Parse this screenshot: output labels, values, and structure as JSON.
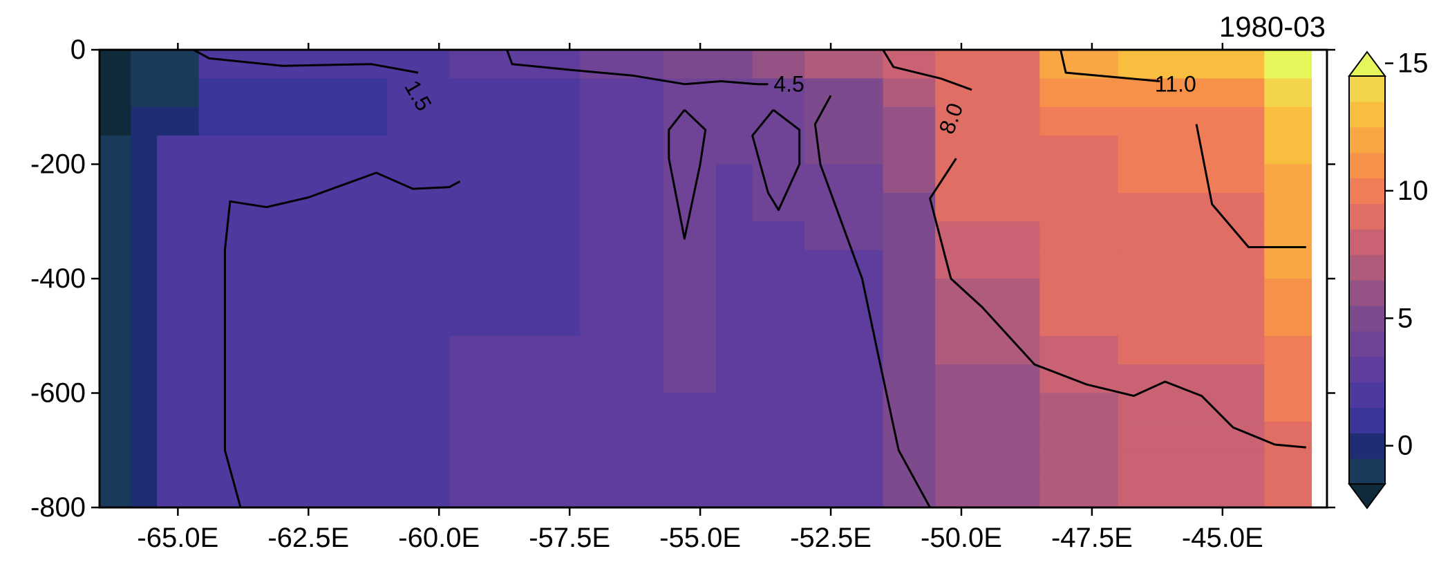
{
  "chart_data": {
    "type": "heatmap",
    "subtype": "filled-contour-section",
    "date_label": "1980-03",
    "xlabel": "",
    "ylabel": "",
    "xlim": [
      -66.5,
      -43.0
    ],
    "ylim": [
      -800,
      0
    ],
    "xticks": [
      {
        "value": -65.0,
        "label": "-65.0E"
      },
      {
        "value": -62.5,
        "label": "-62.5E"
      },
      {
        "value": -60.0,
        "label": "-60.0E"
      },
      {
        "value": -57.5,
        "label": "-57.5E"
      },
      {
        "value": -55.0,
        "label": "-55.0E"
      },
      {
        "value": -52.5,
        "label": "-52.5E"
      },
      {
        "value": -50.0,
        "label": "-50.0E"
      },
      {
        "value": -47.5,
        "label": "-47.5E"
      },
      {
        "value": -45.0,
        "label": "-45.0E"
      }
    ],
    "yticks": [
      {
        "value": 0,
        "label": "0"
      },
      {
        "value": -200,
        "label": "-200"
      },
      {
        "value": -400,
        "label": "-400"
      },
      {
        "value": -600,
        "label": "-600"
      },
      {
        "value": -800,
        "label": "-800"
      }
    ],
    "colorbar": {
      "levels": [
        -1.5,
        -0.5,
        0.5,
        1.5,
        2.5,
        3.5,
        4.5,
        5.5,
        6.5,
        7.5,
        8.5,
        9.5,
        10.5,
        11.5,
        12.5,
        13.5,
        14.5
      ],
      "colors": [
        "#1a3a5c",
        "#1f2e74",
        "#3a3599",
        "#4e3a9e",
        "#5e3d9c",
        "#6f4496",
        "#7d4a8e",
        "#955284",
        "#b05a7c",
        "#c96373",
        "#e06e64",
        "#ef7e58",
        "#f7914a",
        "#f9a744",
        "#f9bd40",
        "#f2d54a"
      ],
      "under_color": "#0e2a3b",
      "over_color": "#e6f55a",
      "ticks": [
        {
          "value": 0,
          "label": "0"
        },
        {
          "value": 5,
          "label": "5"
        },
        {
          "value": 10,
          "label": "10"
        },
        {
          "value": 15,
          "label": "15"
        }
      ],
      "extend": "both"
    },
    "depths": [
      0,
      -50,
      -100,
      -150,
      -200,
      -250,
      -300,
      -350,
      -400,
      -450,
      -500,
      -550,
      -600,
      -650,
      -700,
      -750,
      -800
    ],
    "columns": [
      {
        "x0": -66.5,
        "x1": -65.9,
        "values": [
          -2,
          -2,
          -2,
          -1.5,
          -1.5,
          -1.5,
          -1.5,
          -1.5,
          -1.5,
          -1.5,
          -1.5,
          -1.5,
          -1.5,
          -1.5,
          -1.5,
          -1.5
        ]
      },
      {
        "x0": -65.9,
        "x1": -65.4,
        "values": [
          -1,
          -1,
          -0.3,
          -0.3,
          -0.3,
          -0.3,
          -0.3,
          -0.3,
          -0.3,
          -0.3,
          -0.3,
          -0.3,
          -0.3,
          -0.3,
          -0.3,
          -0.3
        ]
      },
      {
        "x0": -65.4,
        "x1": -64.6,
        "values": [
          -1,
          -1,
          0.2,
          1.8,
          1.8,
          1.8,
          1.8,
          1.8,
          1.8,
          1.8,
          1.8,
          1.8,
          1.8,
          1.8,
          1.8,
          1.8
        ]
      },
      {
        "x0": -64.6,
        "x1": -63.0,
        "values": [
          1.6,
          1.2,
          1.2,
          1.8,
          1.8,
          1.8,
          1.8,
          1.8,
          1.8,
          1.8,
          1.8,
          1.8,
          1.8,
          1.8,
          1.8,
          1.8
        ]
      },
      {
        "x0": -63.0,
        "x1": -61.0,
        "values": [
          1.8,
          1.2,
          1.2,
          1.8,
          1.8,
          1.8,
          1.8,
          1.8,
          1.8,
          1.8,
          1.8,
          1.8,
          1.8,
          1.8,
          1.8,
          1.8
        ]
      },
      {
        "x0": -61.0,
        "x1": -59.8,
        "values": [
          2.0,
          1.5,
          1.8,
          1.8,
          1.8,
          1.8,
          1.8,
          1.8,
          1.8,
          1.8,
          1.8,
          1.8,
          1.8,
          1.8,
          1.8,
          1.8
        ]
      },
      {
        "x0": -59.8,
        "x1": -58.8,
        "values": [
          2.6,
          1.8,
          1.8,
          1.8,
          1.8,
          1.8,
          1.8,
          1.8,
          1.8,
          1.8,
          2.6,
          2.6,
          2.6,
          2.6,
          2.6,
          2.6
        ]
      },
      {
        "x0": -58.8,
        "x1": -57.3,
        "values": [
          3.2,
          2.2,
          2.0,
          2.0,
          2.0,
          2.0,
          2.0,
          2.0,
          2.0,
          2.0,
          2.6,
          2.6,
          3.0,
          3.0,
          3.0,
          3.0
        ]
      },
      {
        "x0": -57.3,
        "x1": -55.7,
        "values": [
          4.0,
          3.0,
          3.0,
          3.0,
          3.0,
          3.0,
          3.0,
          3.0,
          3.0,
          3.0,
          3.0,
          3.0,
          3.0,
          3.0,
          3.0,
          3.0
        ]
      },
      {
        "x0": -55.7,
        "x1": -54.7,
        "values": [
          5.0,
          4.0,
          4.2,
          4.2,
          4.2,
          3.8,
          3.6,
          3.5,
          3.5,
          3.5,
          3.5,
          3.5,
          3.0,
          3.0,
          3.0,
          3.0
        ]
      },
      {
        "x0": -54.7,
        "x1": -54.0,
        "values": [
          5.3,
          4.4,
          3.6,
          3.6,
          3.4,
          3.4,
          3.0,
          3.0,
          3.0,
          3.0,
          3.0,
          3.0,
          3.0,
          3.0,
          3.0,
          3.0
        ]
      },
      {
        "x0": -54.0,
        "x1": -53.0,
        "values": [
          5.8,
          4.4,
          4.2,
          4.2,
          4.0,
          3.6,
          3.0,
          3.0,
          3.0,
          3.0,
          3.0,
          3.0,
          3.0,
          3.0,
          3.0,
          3.0
        ]
      },
      {
        "x0": -53.0,
        "x1": -51.5,
        "values": [
          6.5,
          5.2,
          4.8,
          4.6,
          4.0,
          3.6,
          3.6,
          3.0,
          3.0,
          3.0,
          3.0,
          3.0,
          3.0,
          3.0,
          3.0,
          3.0
        ]
      },
      {
        "x0": -51.5,
        "x1": -50.5,
        "values": [
          7.5,
          6.8,
          6.2,
          6.0,
          5.5,
          5.0,
          5.0,
          5.0,
          5.0,
          5.0,
          5.0,
          5.0,
          5.0,
          4.8,
          4.6,
          4.6
        ]
      },
      {
        "x0": -50.5,
        "x1": -48.5,
        "values": [
          9.2,
          9.0,
          8.5,
          8.5,
          8.8,
          8.5,
          8.0,
          7.5,
          7.0,
          6.8,
          6.5,
          6.2,
          6.0,
          6.0,
          6.0,
          6.0
        ]
      },
      {
        "x0": -48.5,
        "x1": -47.0,
        "values": [
          11.5,
          10.8,
          9.8,
          9.0,
          9.0,
          9.0,
          9.0,
          9.0,
          8.8,
          8.5,
          8.0,
          7.8,
          7.0,
          7.0,
          7.0,
          7.0
        ]
      },
      {
        "x0": -47.0,
        "x1": -44.2,
        "values": [
          12.5,
          11.2,
          10.2,
          9.8,
          9.5,
          9.0,
          9.0,
          9.0,
          9.0,
          8.8,
          8.5,
          8.0,
          8.0,
          7.5,
          7.5,
          7.5
        ]
      },
      {
        "x0": -44.2,
        "x1": -43.3,
        "values": [
          15,
          13.5,
          12.8,
          12.5,
          12.0,
          12.0,
          11.8,
          11.5,
          11.0,
          10.5,
          9.8,
          9.5,
          9.5,
          9.0,
          9.0,
          8.8
        ]
      }
    ],
    "contours": [
      {
        "level": 1.5,
        "label": "1.5",
        "label_pos": [
          -60.4,
          -80
        ],
        "label_rot": 60,
        "segments": [
          [
            [
              -64.7,
              0
            ],
            [
              -64.4,
              -15
            ],
            [
              -63.0,
              -28
            ],
            [
              -61.3,
              -25
            ],
            [
              -60.4,
              -40
            ]
          ],
          [
            [
              -63.8,
              -800
            ],
            [
              -64.1,
              -700
            ],
            [
              -64.1,
              -350
            ],
            [
              -64.0,
              -265
            ],
            [
              -63.3,
              -275
            ],
            [
              -62.5,
              -258
            ],
            [
              -61.2,
              -215
            ],
            [
              -60.5,
              -243
            ],
            [
              -59.8,
              -240
            ],
            [
              -59.6,
              -230
            ]
          ]
        ]
      },
      {
        "level": 4.5,
        "label": "4.5",
        "label_pos": [
          -53.3,
          -60
        ],
        "label_rot": 0,
        "segments": [
          [
            [
              -58.7,
              0
            ],
            [
              -58.6,
              -25
            ],
            [
              -57.5,
              -35
            ],
            [
              -56.3,
              -45
            ],
            [
              -55.3,
              -60
            ],
            [
              -54.6,
              -55
            ],
            [
              -53.9,
              -60
            ],
            [
              -53.7,
              -60
            ]
          ],
          [
            [
              -55.3,
              -105
            ],
            [
              -55.6,
              -140
            ],
            [
              -55.6,
              -190
            ],
            [
              -55.3,
              -330
            ],
            [
              -55.0,
              -200
            ],
            [
              -54.9,
              -140
            ],
            [
              -55.3,
              -105
            ]
          ],
          [
            [
              -53.6,
              -105
            ],
            [
              -54.0,
              -150
            ],
            [
              -53.7,
              -250
            ],
            [
              -53.5,
              -280
            ],
            [
              -53.1,
              -200
            ],
            [
              -53.1,
              -140
            ],
            [
              -53.6,
              -105
            ]
          ],
          [
            [
              -52.5,
              -80
            ],
            [
              -52.8,
              -130
            ],
            [
              -52.7,
              -200
            ],
            [
              -52.3,
              -300
            ],
            [
              -51.9,
              -400
            ],
            [
              -51.6,
              -530
            ],
            [
              -51.2,
              -700
            ],
            [
              -50.6,
              -800
            ]
          ]
        ]
      },
      {
        "level": 8.0,
        "label": "8.0",
        "label_pos": [
          -50.2,
          -120
        ],
        "label_rot": -70,
        "segments": [
          [
            [
              -51.5,
              0
            ],
            [
              -51.3,
              -30
            ],
            [
              -50.4,
              -50
            ],
            [
              -49.8,
              -70
            ]
          ],
          [
            [
              -50.1,
              -190
            ],
            [
              -50.6,
              -260
            ],
            [
              -50.2,
              -400
            ],
            [
              -49.6,
              -450
            ],
            [
              -48.6,
              -550
            ],
            [
              -47.6,
              -585
            ],
            [
              -46.7,
              -605
            ],
            [
              -46.1,
              -580
            ],
            [
              -45.4,
              -605
            ],
            [
              -44.8,
              -660
            ],
            [
              -44.0,
              -690
            ],
            [
              -43.4,
              -695
            ]
          ]
        ]
      },
      {
        "level": 11.0,
        "label": "11.0",
        "label_pos": [
          -45.9,
          -60
        ],
        "label_rot": 0,
        "segments": [
          [
            [
              -48.1,
              0
            ],
            [
              -48.0,
              -40
            ],
            [
              -46.8,
              -50
            ],
            [
              -46.2,
              -55
            ]
          ],
          [
            [
              -45.5,
              -130
            ],
            [
              -45.2,
              -270
            ],
            [
              -44.5,
              -345
            ],
            [
              -43.4,
              -345
            ]
          ]
        ]
      }
    ]
  }
}
